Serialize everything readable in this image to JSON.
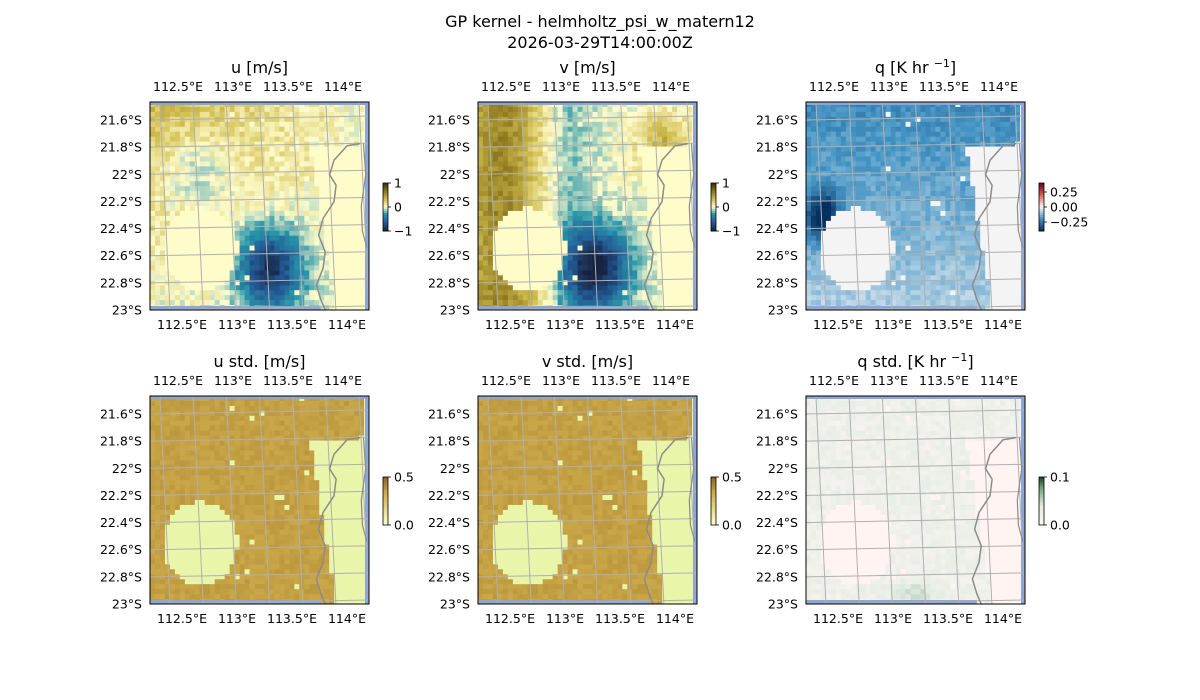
{
  "figure": {
    "title": "GP kernel - helmholtz_psi_w_matern12",
    "timestamp": "2026-03-29T14:00:00Z"
  },
  "colors": {
    "land": "#fefcc8",
    "coastline": "#8c8c8c",
    "grid": "#b0b0b0",
    "ocean_edge": "#8ea6d6"
  },
  "chart_data": [
    {
      "type": "heatmap",
      "title": "u [m/s]",
      "field": "u",
      "colormap": "delta-diverging",
      "xticks": [
        "112.5°E",
        "113°E",
        "113.5°E",
        "114°E"
      ],
      "yticks": [
        "21.6°S",
        "21.8°S",
        "22°S",
        "22.2°S",
        "22.4°S",
        "22.6°S",
        "22.8°S",
        "23°S"
      ],
      "xlim": [
        112.45,
        114.2
      ],
      "ylim": [
        -23.0,
        -21.47
      ],
      "colorbar": {
        "ticks": [
          "1",
          "0",
          "−1"
        ],
        "range": [
          -1,
          1
        ]
      },
      "grid": true
    },
    {
      "type": "heatmap",
      "title": "v [m/s]",
      "field": "v",
      "colormap": "delta-diverging",
      "xticks": [
        "112.5°E",
        "113°E",
        "113.5°E",
        "114°E"
      ],
      "yticks": [
        "21.6°S",
        "21.8°S",
        "22°S",
        "22.2°S",
        "22.4°S",
        "22.6°S",
        "22.8°S",
        "23°S"
      ],
      "xlim": [
        112.45,
        114.2
      ],
      "ylim": [
        -23.0,
        -21.47
      ],
      "colorbar": {
        "ticks": [
          "1",
          "0",
          "−1"
        ],
        "range": [
          -1,
          1
        ]
      },
      "grid": true
    },
    {
      "type": "heatmap",
      "title": "q [K hr −1]",
      "title_main": "q [K hr ",
      "title_sup": "−1",
      "title_end": "]",
      "field": "q",
      "colormap": "red-blue-diverging",
      "xticks": [
        "112.5°E",
        "113°E",
        "113.5°E",
        "114°E"
      ],
      "yticks": [
        "21.6°S",
        "21.8°S",
        "22°S",
        "22.2°S",
        "22.4°S",
        "22.6°S",
        "22.8°S",
        "23°S"
      ],
      "xlim": [
        112.45,
        114.2
      ],
      "ylim": [
        -23.0,
        -21.47
      ],
      "colorbar": {
        "ticks": [
          "0.25",
          "0.00",
          "−0.25"
        ],
        "range": [
          -0.35,
          0.35
        ]
      },
      "grid": true
    },
    {
      "type": "heatmap",
      "title": "u std. [m/s]",
      "field": "u_std",
      "colormap": "gold",
      "xticks": [
        "112.5°E",
        "113°E",
        "113.5°E",
        "114°E"
      ],
      "yticks": [
        "21.6°S",
        "21.8°S",
        "22°S",
        "22.2°S",
        "22.4°S",
        "22.6°S",
        "22.8°S",
        "23°S"
      ],
      "xlim": [
        112.45,
        114.2
      ],
      "ylim": [
        -23.0,
        -21.47
      ],
      "colorbar": {
        "ticks": [
          "0.5",
          "0.0"
        ],
        "range": [
          0,
          0.5
        ]
      },
      "grid": true
    },
    {
      "type": "heatmap",
      "title": "v std. [m/s]",
      "field": "v_std",
      "colormap": "gold",
      "xticks": [
        "112.5°E",
        "113°E",
        "113.5°E",
        "114°E"
      ],
      "yticks": [
        "21.6°S",
        "21.8°S",
        "22°S",
        "22.2°S",
        "22.4°S",
        "22.6°S",
        "22.8°S",
        "23°S"
      ],
      "xlim": [
        112.45,
        114.2
      ],
      "ylim": [
        -23.0,
        -21.47
      ],
      "colorbar": {
        "ticks": [
          "0.5",
          "0.0"
        ],
        "range": [
          0,
          0.5
        ]
      },
      "grid": true
    },
    {
      "type": "heatmap",
      "title": "q std. [K hr −1]",
      "title_main": "q std. [K hr ",
      "title_sup": "−1",
      "title_end": "]",
      "field": "q_std",
      "colormap": "pale-green",
      "xticks": [
        "112.5°E",
        "113°E",
        "113.5°E",
        "114°E"
      ],
      "yticks": [
        "21.6°S",
        "21.8°S",
        "22°S",
        "22.2°S",
        "22.4°S",
        "22.6°S",
        "22.8°S",
        "23°S"
      ],
      "xlim": [
        112.45,
        114.2
      ],
      "ylim": [
        -23.0,
        -21.47
      ],
      "colorbar": {
        "ticks": [
          "0.1",
          "0.0"
        ],
        "range": [
          0,
          0.1
        ]
      },
      "grid": true
    }
  ]
}
